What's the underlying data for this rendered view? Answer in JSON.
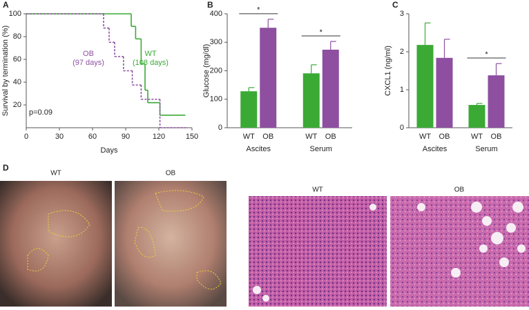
{
  "chart_data": [
    {
      "type": "survival",
      "panel_label": "A",
      "xlabel": "Days",
      "ylabel": "Survival by termination (%)",
      "xlim": [
        0,
        150
      ],
      "xticks": [
        0,
        30,
        60,
        90,
        120,
        150
      ],
      "ylim": [
        0,
        100
      ],
      "yticks": [
        20,
        40,
        60,
        80,
        100
      ],
      "step": true,
      "annotations": [
        "p=0.09"
      ],
      "series": [
        {
          "name": "WT",
          "annotation": "(108 days)",
          "color": "#3aaa35",
          "dashed": false,
          "x": [
            0,
            95,
            99,
            104,
            107.5,
            110,
            121,
            144
          ],
          "values": [
            100,
            89,
            78,
            56,
            33,
            22,
            11,
            11
          ]
        },
        {
          "name": "OB",
          "annotation": "(97 days)",
          "color": "#8e4fa0",
          "dashed": true,
          "x": [
            0,
            70,
            75,
            80,
            88,
            96,
            104,
            121,
            145
          ],
          "values": [
            100,
            87.5,
            75,
            62.5,
            50,
            37.5,
            25,
            0,
            0
          ]
        }
      ]
    },
    {
      "type": "bar",
      "panel_label": "B",
      "ylabel": "Glucose (mg/dl)",
      "categories": [
        "Ascites",
        "Serum"
      ],
      "ylim": [
        0,
        400
      ],
      "yticks": [
        0,
        100,
        200,
        300,
        400
      ],
      "significance": [
        "*",
        "*"
      ],
      "series": [
        {
          "name": "WT",
          "color": "#3aaa35",
          "values": [
            128,
            191
          ],
          "errors": [
            13,
            30
          ]
        },
        {
          "name": "OB",
          "color": "#8e4fa0",
          "values": [
            351,
            274
          ],
          "errors": [
            30,
            29
          ]
        }
      ]
    },
    {
      "type": "bar",
      "panel_label": "C",
      "ylabel": "CXCL1 (ng/ml)",
      "categories": [
        "Ascites",
        "Serum"
      ],
      "ylim": [
        0,
        3
      ],
      "yticks": [
        0,
        1,
        2,
        3
      ],
      "significance": [
        null,
        "*"
      ],
      "series": [
        {
          "name": "WT",
          "color": "#3aaa35",
          "values": [
            2.18,
            0.6
          ],
          "errors": [
            0.58,
            0.04
          ]
        },
        {
          "name": "OB",
          "color": "#8e4fa0",
          "values": [
            1.84,
            1.38
          ],
          "errors": [
            0.49,
            0.31
          ]
        }
      ]
    }
  ],
  "panel_d": {
    "label": "D",
    "images": [
      {
        "label": "WT"
      },
      {
        "label": "OB"
      },
      {
        "label": "WT"
      },
      {
        "label": "OB"
      }
    ]
  }
}
